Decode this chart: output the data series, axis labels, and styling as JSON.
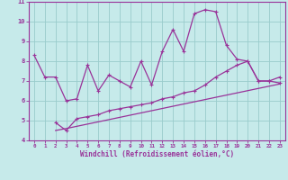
{
  "xlabel": "Windchill (Refroidissement éolien,°C)",
  "xlim": [
    -0.5,
    23.5
  ],
  "ylim": [
    4,
    11
  ],
  "yticks": [
    4,
    5,
    6,
    7,
    8,
    9,
    10,
    11
  ],
  "xticks": [
    0,
    1,
    2,
    3,
    4,
    5,
    6,
    7,
    8,
    9,
    10,
    11,
    12,
    13,
    14,
    15,
    16,
    17,
    18,
    19,
    20,
    21,
    22,
    23
  ],
  "bg_color": "#c6eaea",
  "line_color": "#993399",
  "grid_color": "#99cccc",
  "main_line_x": [
    0,
    1,
    2,
    3,
    4,
    5,
    6,
    7,
    8,
    9,
    10,
    11,
    12,
    13,
    14,
    15,
    16,
    17,
    18,
    19,
    20,
    21,
    22,
    23
  ],
  "main_line_y": [
    8.3,
    7.2,
    7.2,
    6.0,
    6.1,
    7.8,
    6.5,
    7.3,
    7.0,
    6.7,
    8.0,
    6.8,
    8.5,
    9.6,
    8.5,
    10.4,
    10.6,
    10.5,
    8.8,
    8.1,
    8.0,
    7.0,
    7.0,
    6.9
  ],
  "line2_x": [
    2,
    3,
    4,
    5,
    6,
    7,
    8,
    9,
    10,
    11,
    12,
    13,
    14,
    15,
    16,
    17,
    18,
    19,
    20,
    21,
    22,
    23
  ],
  "line2_y": [
    4.9,
    4.5,
    5.1,
    5.2,
    5.3,
    5.5,
    5.6,
    5.7,
    5.8,
    5.9,
    6.1,
    6.2,
    6.4,
    6.5,
    6.8,
    7.2,
    7.5,
    7.8,
    8.0,
    7.0,
    7.0,
    7.2
  ],
  "line3_x": [
    2,
    3,
    23
  ],
  "line3_y": [
    4.5,
    4.6,
    6.85
  ]
}
